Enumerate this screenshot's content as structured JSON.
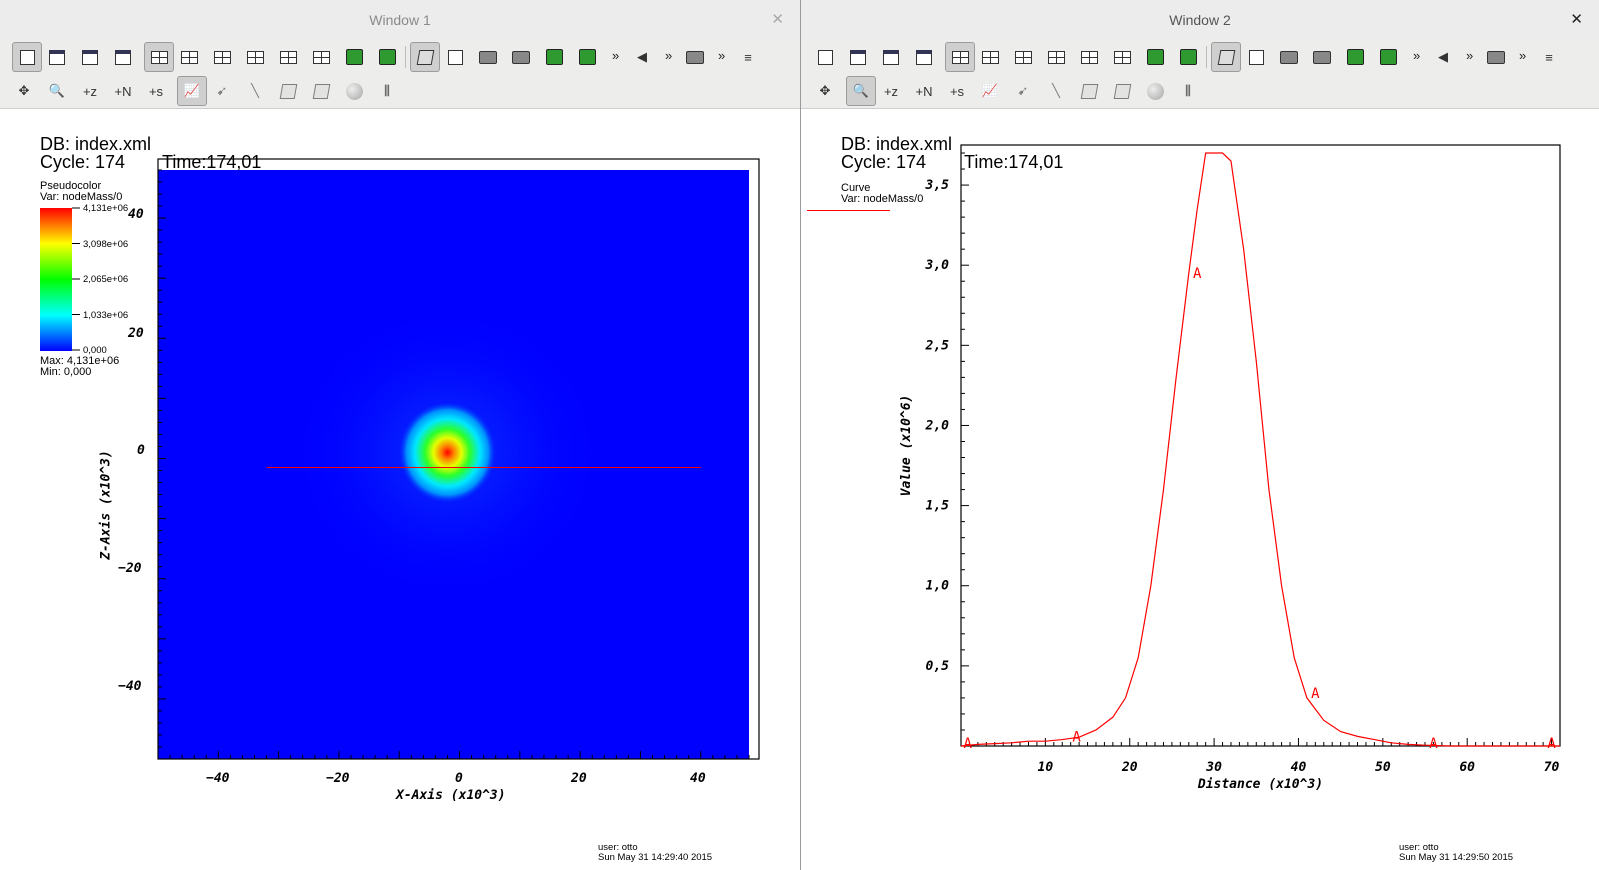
{
  "windows": [
    {
      "title": "Window 1",
      "close_glyph": "✕",
      "annotations": {
        "db": "DB: index.xml",
        "cycle": "Cycle: 174",
        "time": "Time:174,01",
        "plot_type": "Pseudocolor",
        "var": "Var: nodeMass/0",
        "legend_ticks": [
          "4,131e+06",
          "3,098e+06",
          "2,065e+06",
          "1,033e+06",
          "0,000"
        ],
        "max": "Max:  4,131e+06",
        "min": "Min:  0,000",
        "user": "user: otto",
        "date": "Sun May 31 14:29:40 2015"
      },
      "axes": {
        "xlabel": "X-Axis (x10^3)",
        "ylabel": "Z-Axis (x10^3)",
        "xticks": [
          "−40",
          "−20",
          "0",
          "20",
          "40"
        ],
        "yticks": [
          "40",
          "20",
          "0",
          "−20",
          "−40"
        ]
      }
    },
    {
      "title": "Window 2",
      "close_glyph": "✕",
      "annotations": {
        "db": "DB: index.xml",
        "cycle": "Cycle: 174",
        "time": "Time:174,01",
        "plot_type": "Curve",
        "var": "Var: nodeMass/0",
        "user": "user: otto",
        "date": "Sun May 31 14:29:50 2015"
      }
    }
  ],
  "toolbar": {
    "overflow_glyph": "»",
    "zoom_z": "+z",
    "zoom_n": "+N",
    "zoom_s": "+s",
    "icons_row1": [
      "activate-icon",
      "new-window-icon",
      "clone-window-icon",
      "delete-window-icon",
      "layout-1x1-icon",
      "layout-1x2-icon",
      "layout-2x2-icon",
      "layout-2x3-icon",
      "layout-1x4-icon",
      "layout-3x3-icon",
      "lock-view-icon",
      "lock-time-icon",
      "perspective-icon",
      "recenter-icon",
      "undo-view-icon",
      "redo-view-icon",
      "save-image-icon",
      "spin-icon",
      "animation-prev-icon",
      "pick-icon",
      "plot-list-icon"
    ],
    "icons_row2": [
      "navigate-icon",
      "zoom-icon",
      "zone-pick-icon",
      "node-pick-icon",
      "spreadsheet-pick-icon",
      "lineout-icon",
      "point-tool-icon",
      "line-tool-icon",
      "plane-tool-icon",
      "box-tool-icon",
      "sphere-tool-icon",
      "axis-restrict-icon"
    ]
  },
  "chart_data": [
    {
      "type": "heatmap",
      "title": "",
      "xlabel": "X-Axis (x10^3)",
      "ylabel": "Z-Axis (x10^3)",
      "xlim": [
        -50,
        48
      ],
      "ylim": [
        -50,
        48
      ],
      "variable": "nodeMass/0",
      "colormap": [
        "#0000ff",
        "#00ffff",
        "#00ff00",
        "#ffff00",
        "#ff0000"
      ],
      "value_range": [
        0,
        4131000
      ],
      "peak": {
        "x": -2,
        "z": 1,
        "value": 4131000
      },
      "lineout": {
        "x1": -32,
        "z1": -1.5,
        "x2": 40,
        "z2": -1.5,
        "color": "#ff0000"
      }
    },
    {
      "type": "line",
      "title": "",
      "xlabel": "Distance (x10^3)",
      "ylabel": "Value (x10^6)",
      "xlim": [
        0,
        71
      ],
      "ylim": [
        0,
        3.75
      ],
      "xticks": [
        10,
        20,
        30,
        40,
        50,
        60,
        70
      ],
      "yticks": [
        "0,5",
        "1,0",
        "1,5",
        "2,0",
        "2,5",
        "3,0",
        "3,5"
      ],
      "series": [
        {
          "name": "A",
          "color": "#ff0000",
          "x": [
            0,
            2,
            4,
            6,
            8,
            10,
            12,
            14,
            16,
            18,
            19.5,
            21,
            22.5,
            24,
            25.5,
            27,
            28,
            29,
            30,
            31,
            32,
            33.5,
            35,
            36.5,
            38,
            39.5,
            41,
            43,
            45,
            47,
            49,
            51,
            53,
            55,
            58,
            62,
            66,
            71
          ],
          "y": [
            0.0,
            0.01,
            0.015,
            0.02,
            0.03,
            0.03,
            0.04,
            0.055,
            0.1,
            0.18,
            0.3,
            0.55,
            1.0,
            1.6,
            2.3,
            2.95,
            3.35,
            3.7,
            3.7,
            3.7,
            3.65,
            3.1,
            2.4,
            1.6,
            1.0,
            0.55,
            0.3,
            0.16,
            0.09,
            0.06,
            0.04,
            0.02,
            0.01,
            0.005,
            0.0,
            0.0,
            0.0,
            0.0
          ]
        }
      ],
      "markers": [
        {
          "x": 0.8,
          "y": 0.02,
          "label": "A"
        },
        {
          "x": 13.7,
          "y": 0.06,
          "label": "A"
        },
        {
          "x": 28.0,
          "y": 2.95,
          "label": "A"
        },
        {
          "x": 42.0,
          "y": 0.33,
          "label": "A"
        },
        {
          "x": 56.0,
          "y": 0.02,
          "label": "A"
        },
        {
          "x": 70.0,
          "y": 0.02,
          "label": "A"
        }
      ]
    }
  ]
}
